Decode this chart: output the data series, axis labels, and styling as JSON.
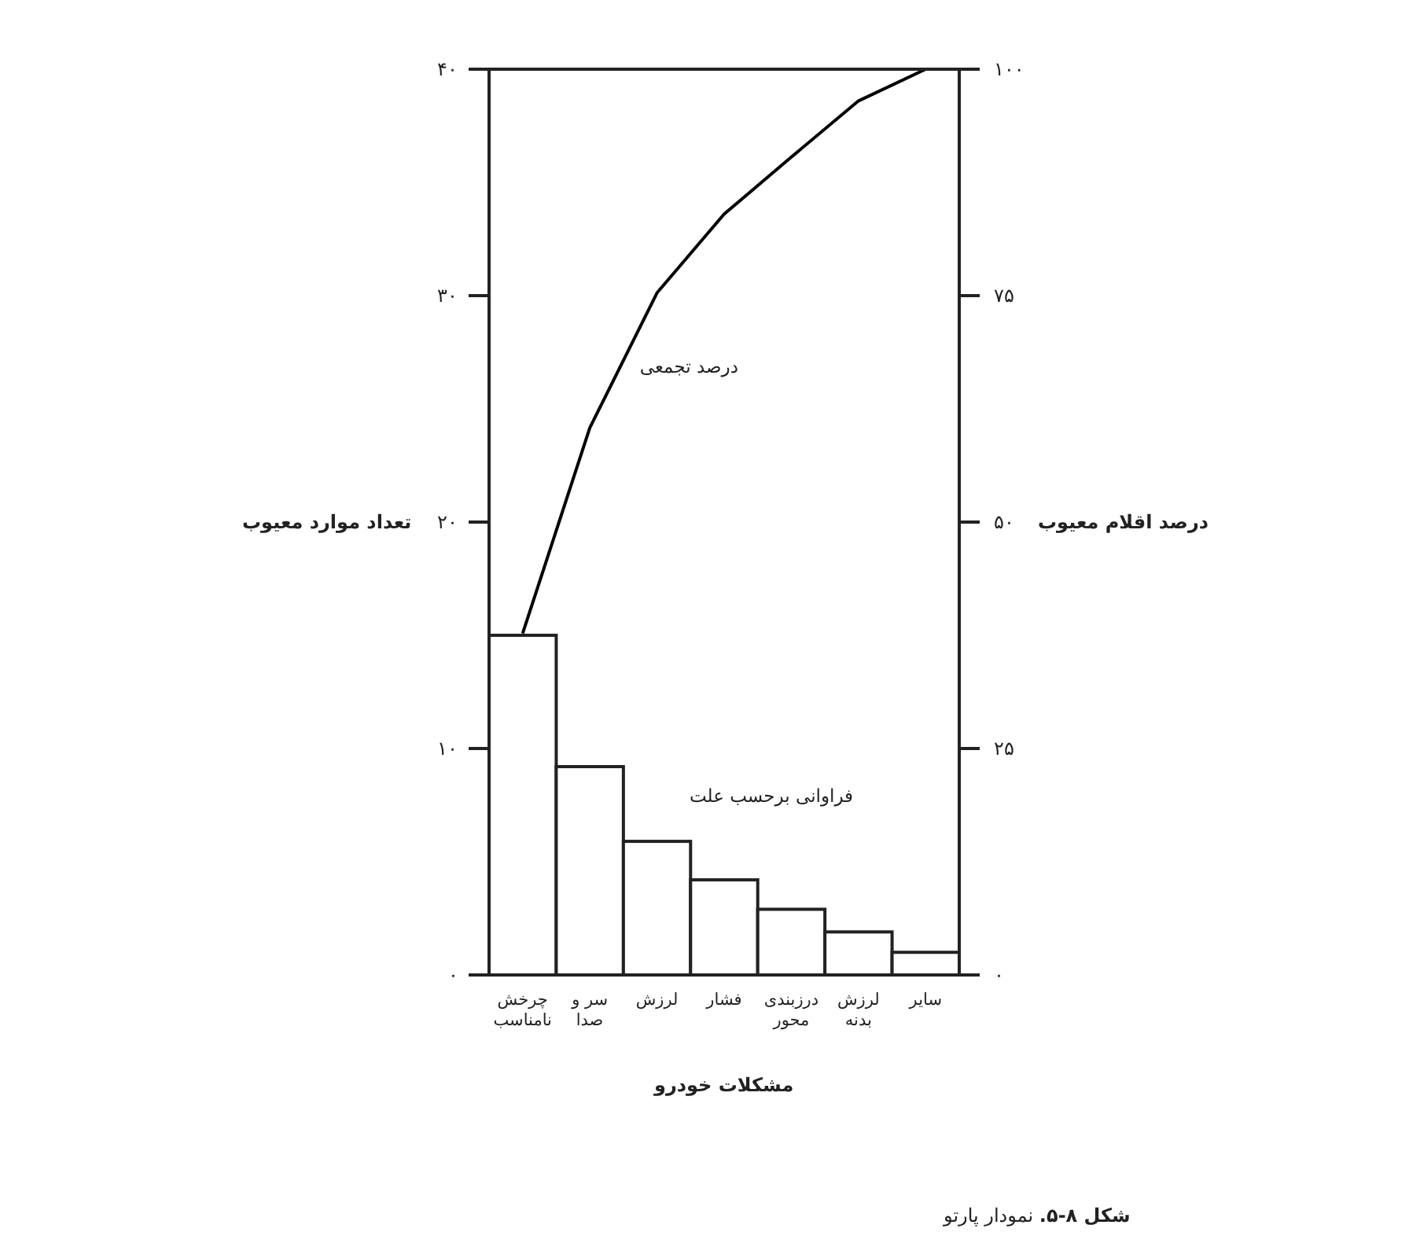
{
  "chart_data": {
    "type": "bar",
    "xlabel": "مشکلات خودرو",
    "ylabel": "تعداد موارد معیوب",
    "y2label": "درصد اقلام معیوب",
    "categories": [
      "چرخش نامناسب",
      "سر و صدا",
      "لرزش",
      "فشار",
      "درزبندی محور",
      "لرزش بدنه",
      "سایر"
    ],
    "ylim": [
      0,
      40
    ],
    "yticks": [
      {
        "value": 0,
        "label": "۰"
      },
      {
        "value": 10,
        "label": "۱۰"
      },
      {
        "value": 20,
        "label": "۲۰"
      },
      {
        "value": 30,
        "label": "۳۰"
      },
      {
        "value": 40,
        "label": "۴۰"
      }
    ],
    "y2lim": [
      0,
      100
    ],
    "y2ticks": [
      {
        "value": 0,
        "label": "۰"
      },
      {
        "value": 25,
        "label": "۲۵"
      },
      {
        "value": 50,
        "label": "۵۰"
      },
      {
        "value": 75,
        "label": "۷۵"
      },
      {
        "value": 100,
        "label": "۱۰۰"
      }
    ],
    "series": [
      {
        "name": "فراوانی برحسب علت",
        "color": "#ffffff",
        "values": [
          15,
          9.2,
          5.9,
          4.2,
          2.9,
          1.9,
          1
        ]
      },
      {
        "name": "درصد تجمعی",
        "type": "line",
        "axis": "y2",
        "color": "#000000",
        "values": [
          37.7,
          60.4,
          75.3,
          84,
          90.3,
          96.5,
          100
        ]
      }
    ],
    "annotations": [
      "**شکل ۸-۵.** نمودار پارتو"
    ]
  }
}
